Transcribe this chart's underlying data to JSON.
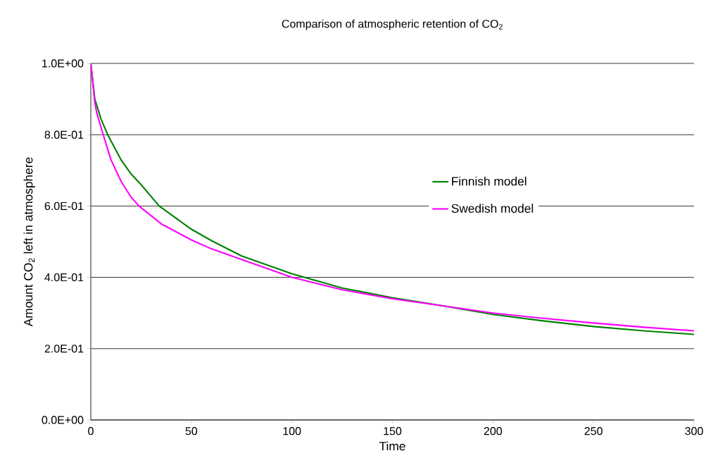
{
  "chart_data": {
    "type": "line",
    "title": "Comparison of atmospheric retention of CO$_{2}$",
    "xlabel": "Time",
    "ylabel": "Amount CO$_{2}$ left in atmosphere",
    "xlim": [
      0,
      300
    ],
    "xticks": [
      0,
      50,
      100,
      150,
      200,
      250,
      300
    ],
    "ylim": [
      0,
      1
    ],
    "yticks": [
      {
        "value": 0,
        "label": "0.0E+00"
      },
      {
        "value": 0.2,
        "label": "2.0E-01"
      },
      {
        "value": 0.4,
        "label": "4.0E-01"
      },
      {
        "value": 0.6,
        "label": "6.0E-01"
      },
      {
        "value": 0.8,
        "label": "8.0E-01"
      },
      {
        "value": 1,
        "label": "1.0E+00"
      }
    ],
    "grid": "y",
    "legend": "right",
    "marker": "none",
    "line_style": "solid",
    "series": [
      {
        "name": "Finnish model",
        "color": "#008000",
        "x": [
          0,
          2,
          5,
          8.4,
          15,
          20,
          25,
          34,
          50,
          60,
          75,
          100,
          125,
          150,
          175,
          200,
          225,
          250,
          275,
          300
        ],
        "values": [
          1.0,
          0.9,
          0.845,
          0.8,
          0.73,
          0.69,
          0.66,
          0.6,
          0.535,
          0.503,
          0.46,
          0.41,
          0.37,
          0.343,
          0.32,
          0.296,
          0.278,
          0.262,
          0.25,
          0.24
        ]
      },
      {
        "name": "Swedish model",
        "color": "#ff00ff",
        "x": [
          0,
          2,
          3,
          6.2,
          10,
          15,
          20,
          24,
          35,
          50,
          60,
          75,
          100,
          125,
          150,
          175,
          200,
          225,
          250,
          275,
          300
        ],
        "values": [
          1.0,
          0.89,
          0.86,
          0.8,
          0.73,
          0.67,
          0.625,
          0.6,
          0.55,
          0.505,
          0.48,
          0.45,
          0.4,
          0.365,
          0.34,
          0.32,
          0.3,
          0.285,
          0.272,
          0.26,
          0.25
        ]
      }
    ]
  }
}
